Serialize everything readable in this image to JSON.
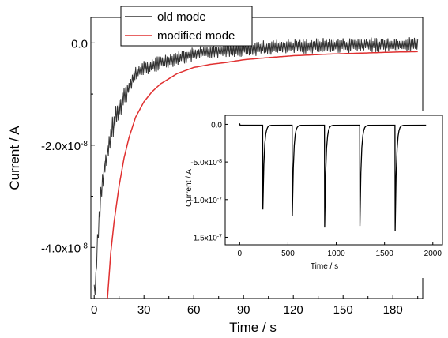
{
  "chart_data": [
    {
      "type": "line",
      "xlabel": "Time / s",
      "ylabel": "Current / A",
      "xlim": [
        -2,
        198
      ],
      "ylim": [
        -5e-08,
        5e-09
      ],
      "x_ticks": [
        0,
        30,
        60,
        90,
        120,
        150,
        180
      ],
      "x_tick_labels": [
        "0",
        "30",
        "60",
        "90",
        "120",
        "150",
        "180"
      ],
      "y_ticks": [
        -4e-08,
        -2e-08,
        0
      ],
      "y_tick_labels": [
        "-4.0x10",
        "-2.0x10",
        "0.0"
      ],
      "y_tick_exponents": [
        "-8",
        "-8",
        ""
      ],
      "legend": {
        "placement": "top-left"
      },
      "series": [
        {
          "name": "old mode",
          "color": "#333333",
          "x": [
            0,
            1,
            2,
            3,
            4,
            5,
            6,
            8,
            10,
            12,
            15,
            18,
            21,
            25,
            30,
            35,
            40,
            50,
            60,
            70,
            80,
            90,
            100,
            110,
            120,
            130,
            140,
            150,
            160,
            170,
            180,
            190,
            195
          ],
          "y": [
            -4.9e-08,
            -4.6e-08,
            -3.9e-08,
            -3.4e-08,
            -3e-08,
            -2.7e-08,
            -2.5e-08,
            -2.2e-08,
            -1.8e-08,
            -1.55e-08,
            -1.3e-08,
            -1.05e-08,
            -8.5e-09,
            -6e-09,
            -5e-09,
            -4.5e-09,
            -3.8e-09,
            -3e-09,
            -2.2e-09,
            -1.7e-09,
            -1.3e-09,
            -1.2e-09,
            -1e-09,
            -8e-10,
            -7e-10,
            -6e-10,
            -5e-10,
            -5e-10,
            -4e-10,
            -4e-10,
            -3e-10,
            -3e-10,
            -3e-10
          ],
          "noise_amplitude": 1.5e-09
        },
        {
          "name": "modified mode",
          "color": "#e03030",
          "x": [
            8,
            10,
            12,
            15,
            18,
            21,
            25,
            30,
            35,
            40,
            50,
            60,
            70,
            80,
            90,
            100,
            120,
            140,
            160,
            180,
            195
          ],
          "y": [
            -5e-08,
            -4.1e-08,
            -3.5e-08,
            -2.8e-08,
            -2.25e-08,
            -1.85e-08,
            -1.45e-08,
            -1.15e-08,
            -9.5e-09,
            -8e-09,
            -6e-09,
            -4.8e-09,
            -4.2e-09,
            -3.8e-09,
            -3.3e-09,
            -3e-09,
            -2.5e-09,
            -2.2e-09,
            -2e-09,
            -1.8e-09,
            -1.7e-09
          ]
        }
      ]
    },
    {
      "type": "line",
      "role": "inset",
      "xlabel": "Time / s",
      "ylabel": "Current / A",
      "xlim": [
        -150,
        2100
      ],
      "ylim": [
        -1.6e-07,
        1.2e-08
      ],
      "x_ticks": [
        0,
        500,
        1000,
        1500,
        2000
      ],
      "x_tick_labels": [
        "0",
        "500",
        "1000",
        "1500",
        "2000"
      ],
      "y_ticks": [
        0,
        -5e-08,
        -1e-07,
        -1.5e-07
      ],
      "y_tick_labels": [
        "0.0",
        "-5.0x10",
        "-1.0x10",
        "-1.5x10"
      ],
      "y_tick_exponents": [
        "",
        "-8",
        "-7",
        "-7"
      ],
      "series": [
        {
          "color": "#000000",
          "start_x": 0,
          "end_x": 1930,
          "baseline": -1.2e-09,
          "pulses": [
            {
              "x": 240,
              "peak": -1.13e-07
            },
            {
              "x": 545,
              "peak": -1.22e-07
            },
            {
              "x": 880,
              "peak": -1.37e-07
            },
            {
              "x": 1245,
              "peak": -1.35e-07
            },
            {
              "x": 1610,
              "peak": -1.42e-07
            }
          ]
        }
      ]
    }
  ]
}
